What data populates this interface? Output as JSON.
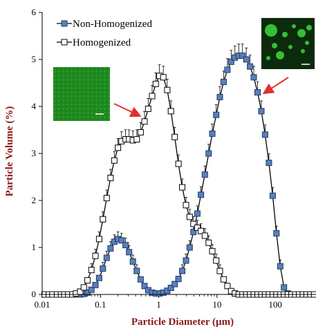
{
  "chart_data": {
    "type": "line",
    "xscale": "log",
    "xlabel": "Particle Diameter (µm)",
    "ylabel": "Particle Volume (%)",
    "xlim": [
      0.01,
      500
    ],
    "ylim": [
      0,
      6
    ],
    "x_ticks": [
      "0.01",
      "0.1",
      "1",
      "10",
      "100"
    ],
    "y_ticks": [
      "0",
      "1",
      "2",
      "3",
      "4",
      "5",
      "6"
    ],
    "legend_placement": "top-left",
    "colors": {
      "non_homogenized_fill": "#5b7fb8",
      "non_homogenized_edge": "#1f3a6b",
      "homogenized_fill": "#ffffff",
      "homogenized_edge": "#000000",
      "axis_title": "#8b1a1a",
      "arrow": "#e03030",
      "micrograph": "#1f8a1f"
    },
    "series": [
      {
        "name": "Non-Homogenized",
        "marker": "filled-square",
        "points": [
          [
            0.011,
            0
          ],
          [
            0.013,
            0
          ],
          [
            0.015,
            0
          ],
          [
            0.018,
            0
          ],
          [
            0.021,
            0
          ],
          [
            0.024,
            0
          ],
          [
            0.028,
            0
          ],
          [
            0.033,
            0
          ],
          [
            0.038,
            0
          ],
          [
            0.045,
            0
          ],
          [
            0.052,
            0.01
          ],
          [
            0.06,
            0.04
          ],
          [
            0.07,
            0.1
          ],
          [
            0.082,
            0.2
          ],
          [
            0.095,
            0.35
          ],
          [
            0.11,
            0.55
          ],
          [
            0.128,
            0.78
          ],
          [
            0.149,
            0.98
          ],
          [
            0.173,
            1.12
          ],
          [
            0.2,
            1.18
          ],
          [
            0.23,
            1.15
          ],
          [
            0.27,
            1.05
          ],
          [
            0.31,
            0.9
          ],
          [
            0.36,
            0.7
          ],
          [
            0.42,
            0.5
          ],
          [
            0.49,
            0.32
          ],
          [
            0.57,
            0.18
          ],
          [
            0.66,
            0.09
          ],
          [
            0.77,
            0.04
          ],
          [
            0.89,
            0.02
          ],
          [
            1.03,
            0.02
          ],
          [
            1.2,
            0.04
          ],
          [
            1.4,
            0.08
          ],
          [
            1.62,
            0.14
          ],
          [
            1.88,
            0.22
          ],
          [
            2.18,
            0.33
          ],
          [
            2.53,
            0.5
          ],
          [
            2.94,
            0.72
          ],
          [
            3.4,
            1.0
          ],
          [
            3.95,
            1.33
          ],
          [
            4.6,
            1.72
          ],
          [
            5.3,
            2.12
          ],
          [
            6.2,
            2.55
          ],
          [
            7.2,
            3.0
          ],
          [
            8.3,
            3.42
          ],
          [
            9.7,
            3.82
          ],
          [
            11.2,
            4.2
          ],
          [
            13,
            4.52
          ],
          [
            15.1,
            4.78
          ],
          [
            17.5,
            4.95
          ],
          [
            20.3,
            5.04
          ],
          [
            23.6,
            5.08
          ],
          [
            27.4,
            5.08
          ],
          [
            31.8,
            5.0
          ],
          [
            36.9,
            4.85
          ],
          [
            42.8,
            4.62
          ],
          [
            49.7,
            4.3
          ],
          [
            57.7,
            3.9
          ],
          [
            67,
            3.4
          ],
          [
            77.8,
            2.8
          ],
          [
            90.3,
            2.1
          ],
          [
            104.8,
            1.3
          ],
          [
            121.6,
            0.6
          ],
          [
            141.2,
            0.15
          ],
          [
            163.9,
            0.02
          ]
        ]
      },
      {
        "name": "Homogenized",
        "marker": "open-square",
        "points": [
          [
            0.011,
            0
          ],
          [
            0.013,
            0
          ],
          [
            0.015,
            0
          ],
          [
            0.018,
            0
          ],
          [
            0.021,
            0
          ],
          [
            0.024,
            0
          ],
          [
            0.028,
            0
          ],
          [
            0.033,
            0
          ],
          [
            0.038,
            0.02
          ],
          [
            0.045,
            0.06
          ],
          [
            0.052,
            0.15
          ],
          [
            0.06,
            0.3
          ],
          [
            0.07,
            0.52
          ],
          [
            0.082,
            0.82
          ],
          [
            0.095,
            1.18
          ],
          [
            0.11,
            1.6
          ],
          [
            0.128,
            2.05
          ],
          [
            0.149,
            2.48
          ],
          [
            0.173,
            2.85
          ],
          [
            0.2,
            3.12
          ],
          [
            0.23,
            3.26
          ],
          [
            0.27,
            3.3
          ],
          [
            0.31,
            3.3
          ],
          [
            0.36,
            3.28
          ],
          [
            0.42,
            3.3
          ],
          [
            0.49,
            3.45
          ],
          [
            0.57,
            3.68
          ],
          [
            0.66,
            3.95
          ],
          [
            0.77,
            4.22
          ],
          [
            0.89,
            4.48
          ],
          [
            1.03,
            4.65
          ],
          [
            1.2,
            4.62
          ],
          [
            1.4,
            4.35
          ],
          [
            1.62,
            3.9
          ],
          [
            1.88,
            3.35
          ],
          [
            2.18,
            2.78
          ],
          [
            2.53,
            2.28
          ],
          [
            2.94,
            1.9
          ],
          [
            3.4,
            1.65
          ],
          [
            3.95,
            1.5
          ],
          [
            4.6,
            1.42
          ],
          [
            5.3,
            1.35
          ],
          [
            6.2,
            1.25
          ],
          [
            7.2,
            1.1
          ],
          [
            8.3,
            0.92
          ],
          [
            9.7,
            0.72
          ],
          [
            11.2,
            0.5
          ],
          [
            13,
            0.32
          ],
          [
            15.1,
            0.18
          ],
          [
            17.5,
            0.07
          ],
          [
            20.3,
            0.02
          ],
          [
            23.6,
            0
          ],
          [
            27.4,
            0
          ],
          [
            31.8,
            0
          ],
          [
            36.9,
            0
          ],
          [
            42.8,
            0
          ],
          [
            49.7,
            0
          ],
          [
            57.7,
            0
          ],
          [
            67,
            0
          ],
          [
            77.8,
            0
          ],
          [
            90.3,
            0
          ],
          [
            104.8,
            0
          ],
          [
            121.6,
            0
          ],
          [
            141.2,
            0
          ],
          [
            163.9,
            0
          ],
          [
            190,
            0
          ],
          [
            220,
            0
          ],
          [
            256,
            0
          ],
          [
            297,
            0
          ],
          [
            345,
            0
          ],
          [
            400,
            0
          ],
          [
            465,
            0
          ]
        ]
      }
    ]
  }
}
